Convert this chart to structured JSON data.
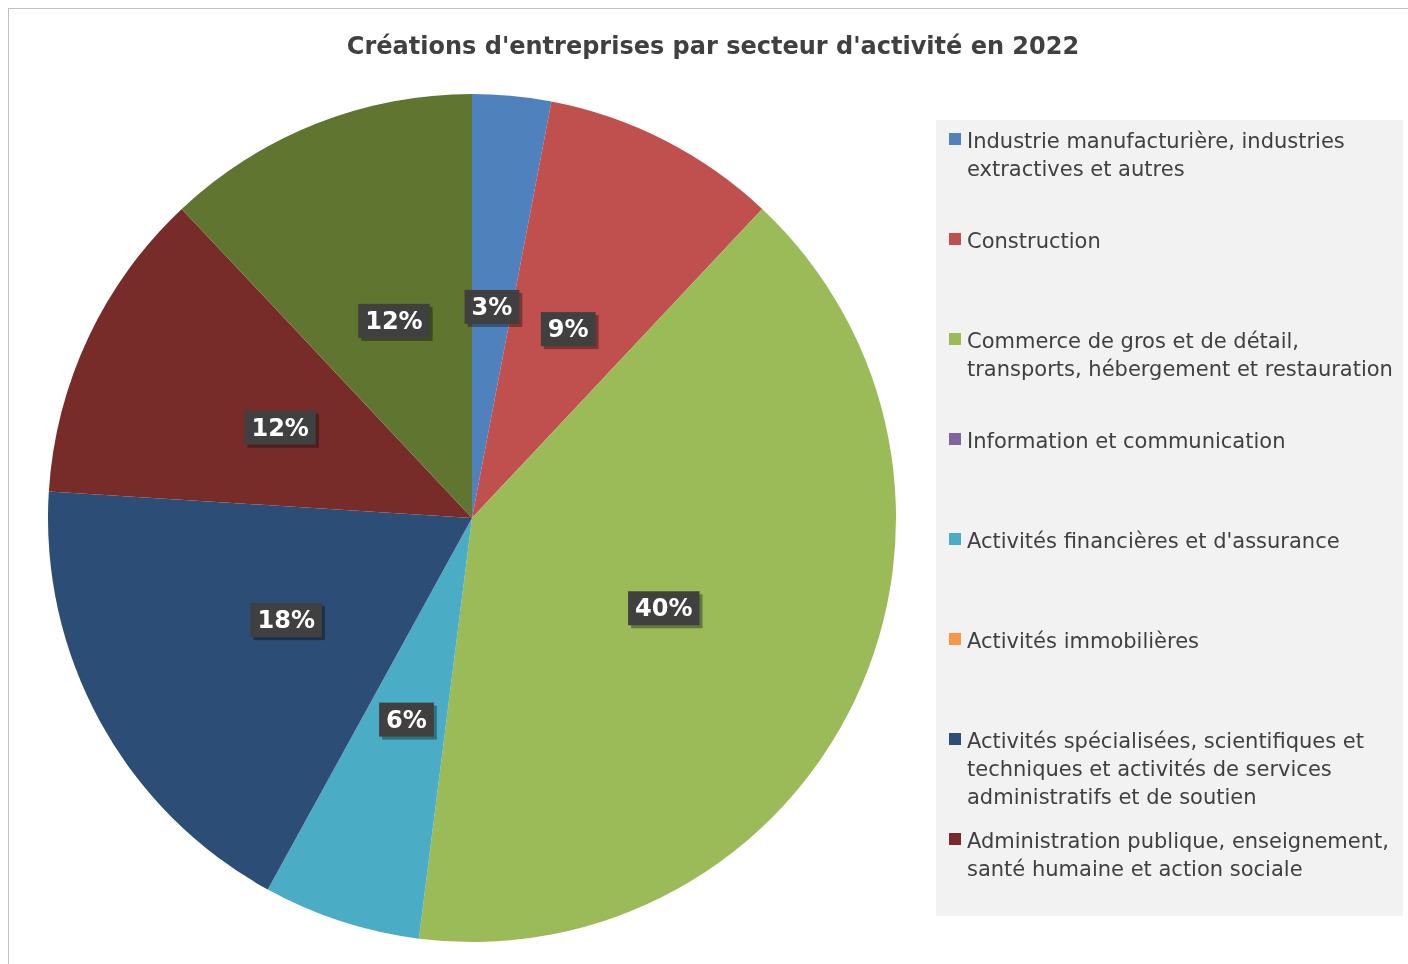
{
  "chart_data": {
    "type": "pie",
    "title": "Créations d'entreprises par secteur d'activité en 2022",
    "categories": [
      "Industrie manufacturière, industries extractives et autres",
      "Construction",
      "Commerce de gros et de détail, transports, hébergement et restauration",
      "Information et communication",
      "Activités financières et d'assurance",
      "Activités immobilières",
      "Activités spécialisées, scientifiques et techniques et activités de services administratifs et de soutien",
      "Administration publique, enseignement, santé humaine et action sociale",
      null
    ],
    "values": [
      3,
      9,
      40,
      0,
      6,
      0,
      18,
      12,
      12
    ],
    "value_labels": [
      "3%",
      "9%",
      "40%",
      null,
      "6%",
      null,
      "18%",
      "12%",
      "12%"
    ],
    "colors": [
      "#4f81bd",
      "#c0504d",
      "#9bbb59",
      "#8064a2",
      "#4bacc6",
      "#f79646",
      "#2c4d75",
      "#772c2a",
      "#5f7530"
    ],
    "legend": "right"
  }
}
